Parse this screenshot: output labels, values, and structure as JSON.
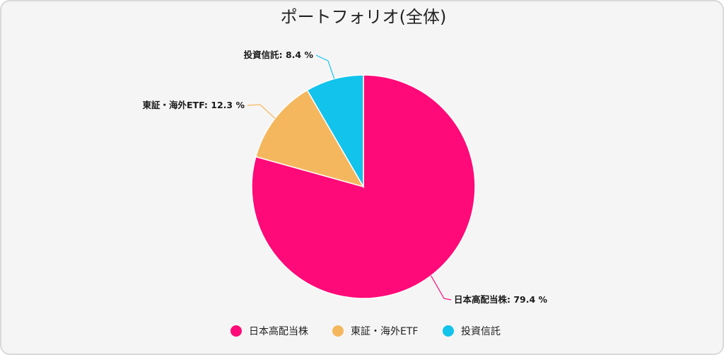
{
  "chart_data": {
    "type": "pie",
    "title": "ポートフォリオ(全体)",
    "slices": [
      {
        "name": "日本高配当株",
        "value": 79.4,
        "label": "日本高配当株: 79.4 %",
        "color": "#ff0a78"
      },
      {
        "name": "東証・海外ETF",
        "value": 12.3,
        "label": "東証・海外ETF: 12.3 %",
        "color": "#f5b75e"
      },
      {
        "name": "投資信託",
        "value": 8.4,
        "label": "投資信託: 8.4 %",
        "color": "#12c3eb"
      }
    ],
    "legend_position": "bottom"
  }
}
